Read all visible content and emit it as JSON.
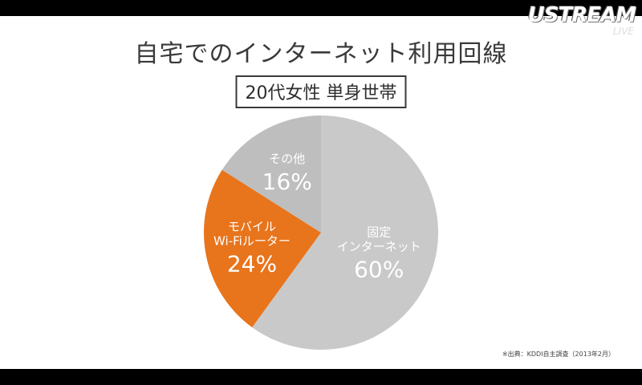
{
  "slide": {
    "title": "自宅でのインターネット利用回線",
    "subtitle": "20代女性 単身世帯",
    "source": "※出典：KDDI自主調査（2013年2月）"
  },
  "overlay": {
    "logo": "USTREAM",
    "logo_sub": "LIVE"
  },
  "colors": {
    "fixed": "#c9c9c9",
    "mobile": "#e8741c",
    "other": "#bebebe",
    "label_text": "#ffffff"
  },
  "chart_data": {
    "type": "pie",
    "slices": [
      {
        "label_lines": [
          "固定",
          "インターネット"
        ],
        "value": 60,
        "value_label": "60%",
        "color": "#c9c9c9"
      },
      {
        "label_lines": [
          "モバイル",
          "Wi-Fiルーター"
        ],
        "value": 24,
        "value_label": "24%",
        "color": "#e8741c"
      },
      {
        "label_lines": [
          "その他"
        ],
        "value": 16,
        "value_label": "16%",
        "color": "#bebebe"
      }
    ],
    "start": "12 o'clock",
    "direction": "clockwise"
  }
}
